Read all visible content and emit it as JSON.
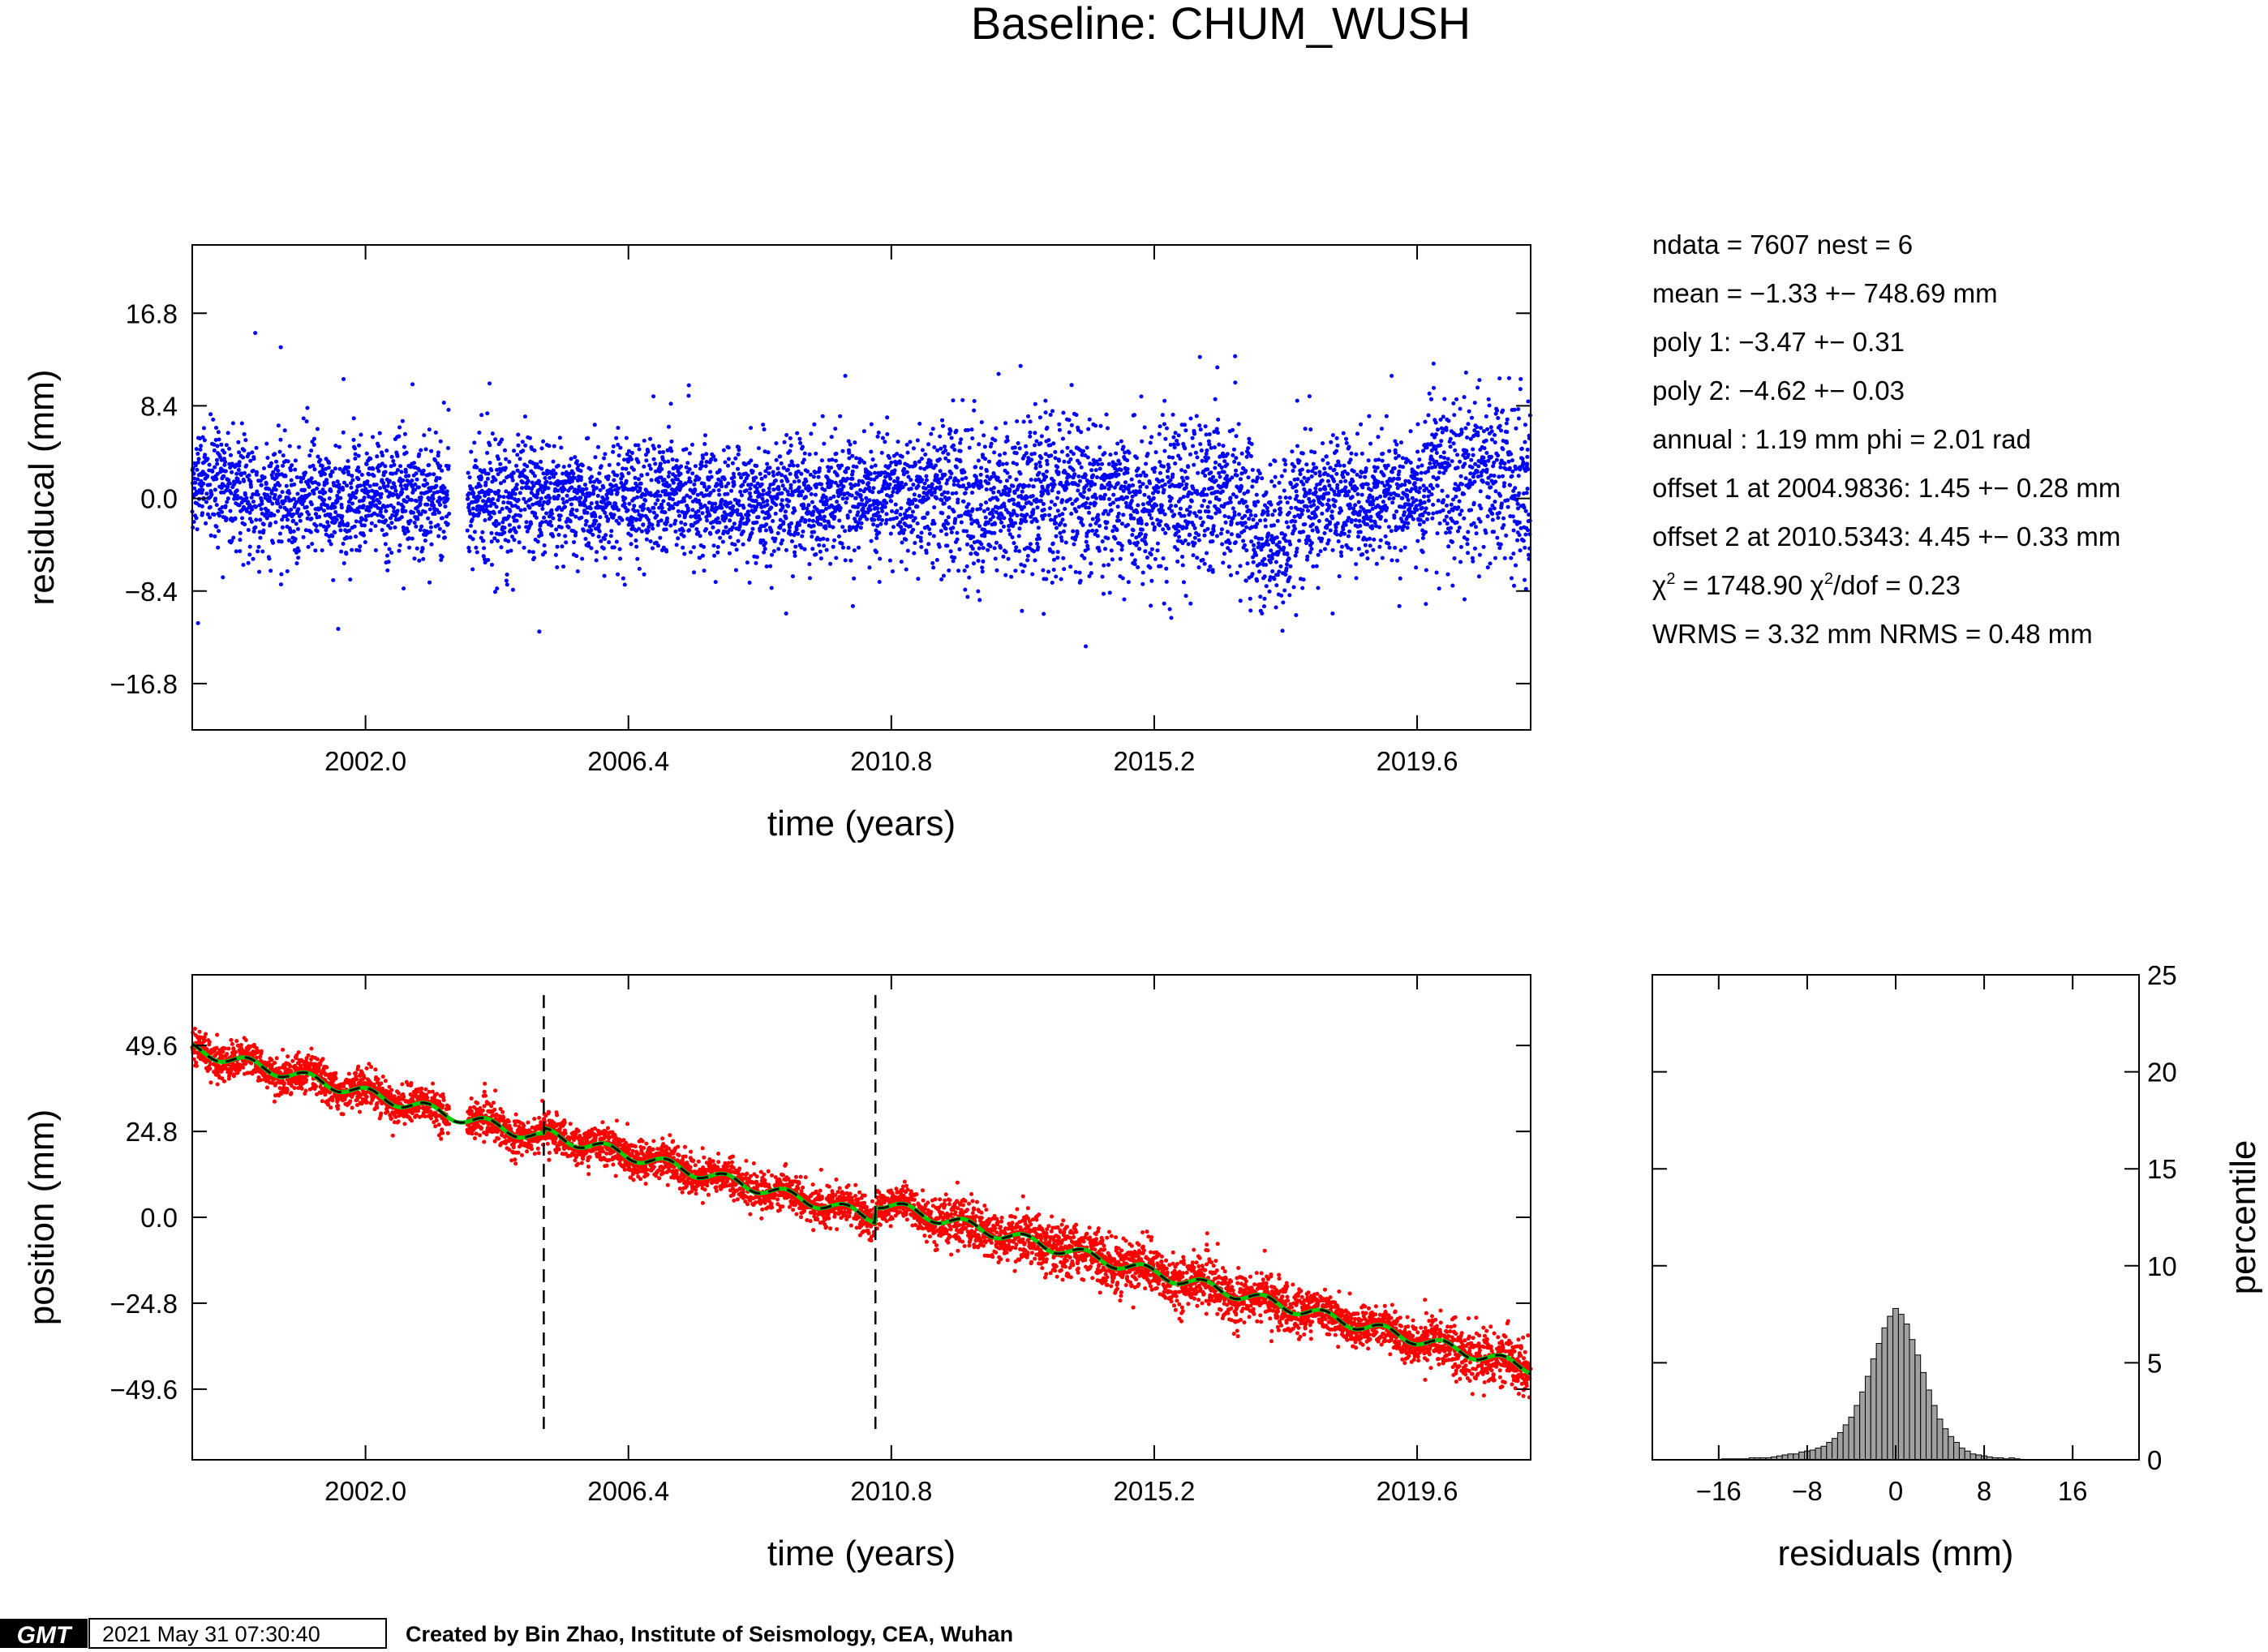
{
  "title": "Baseline: CHUM_WUSH",
  "stats": {
    "lines": [
      "ndata = 7607  nest = 6",
      "mean = −1.33 +− 748.69 mm",
      "poly 1: −3.47 +− 0.31",
      "poly 2: −4.62 +− 0.03",
      "annual : 1.19 mm  phi = 2.01 rad",
      "offset 1 at 2004.9836: 1.45 +− 0.28 mm",
      "offset 2 at 2010.5343: 4.45 +− 0.33 mm"
    ],
    "chi2_a": "χ",
    "chi2_b": " = 1748.90  ",
    "chi2_c": "χ",
    "chi2_d": "/dof = 0.23",
    "sup": "2",
    "wrms": "WRMS = 3.32 mm  NRMS = 0.48 mm"
  },
  "footer": {
    "logo": "GMT",
    "timestamp": "2021 May 31 07:30:40",
    "credit": "Created by Bin Zhao, Institute of Seismology, CEA, Wuhan"
  },
  "chart_data": [
    {
      "type": "scatter",
      "name": "residual",
      "xlabel": "time (years)",
      "ylabel": "residucal (mm)",
      "xlim": [
        1999.1,
        2021.5
      ],
      "ylim": [
        -21.0,
        23.0
      ],
      "xticks": [
        "2002.0",
        "2006.4",
        "2010.8",
        "2015.2",
        "2019.6"
      ],
      "xtick_values": [
        2002.0,
        2006.4,
        2010.8,
        2015.2,
        2019.6
      ],
      "yticks": [
        "16.8",
        "8.4",
        "0.0",
        "−8.4",
        "−16.8"
      ],
      "ytick_values": [
        16.8,
        8.4,
        0.0,
        -8.4,
        -16.8
      ],
      "color": "#0000ff",
      "points_description_count": 7607
    },
    {
      "type": "scatter",
      "name": "position",
      "xlabel": "time (years)",
      "ylabel": "position (mm)",
      "xlim": [
        1999.1,
        2021.5
      ],
      "ylim": [
        -70.0,
        70.0
      ],
      "xticks": [
        "2002.0",
        "2006.4",
        "2010.8",
        "2015.2",
        "2019.6"
      ],
      "xtick_values": [
        2002.0,
        2006.4,
        2010.8,
        2015.2,
        2019.6
      ],
      "yticks": [
        "49.6",
        "24.8",
        "0.0",
        "−24.8",
        "−49.6"
      ],
      "ytick_values": [
        49.6,
        24.8,
        0.0,
        -24.8,
        -49.6
      ],
      "color": "#ff0000",
      "model_color": "#00cc00",
      "offsets_years": [
        2004.9836,
        2010.5343
      ],
      "trend": {
        "start": [
          1999.1,
          48.5
        ],
        "end": [
          2021.5,
          -49.5
        ]
      }
    },
    {
      "type": "bar",
      "name": "histogram",
      "xlabel": "residuals (mm)",
      "ylabel": "percentile",
      "xlim": [
        -22,
        22
      ],
      "ylim": [
        0,
        25
      ],
      "xticks": [
        "−16",
        "−8",
        "0",
        "8",
        "16"
      ],
      "xtick_values": [
        -16,
        -8,
        0,
        8,
        16
      ],
      "yticks": [
        "0",
        "5",
        "10",
        "15",
        "20",
        "25"
      ],
      "ytick_values": [
        0,
        5,
        10,
        15,
        20,
        25
      ],
      "bin_width": 0.5,
      "color": "#a0a0a0",
      "bins_x": [
        -15.5,
        -15,
        -14.5,
        -14,
        -13.5,
        -13,
        -12.5,
        -12,
        -11.5,
        -11,
        -10.5,
        -10,
        -9.5,
        -9,
        -8.5,
        -8,
        -7.5,
        -7,
        -6.5,
        -6,
        -5.5,
        -5,
        -4.5,
        -4,
        -3.5,
        -3,
        -2.5,
        -2,
        -1.5,
        -1,
        -0.5,
        0,
        0.5,
        1,
        1.5,
        2,
        2.5,
        3,
        3.5,
        4,
        4.5,
        5,
        5.5,
        6,
        6.5,
        7,
        7.5,
        8,
        8.5,
        9,
        9.5,
        10,
        10.5,
        11
      ],
      "values": [
        0.05,
        0.05,
        0.05,
        0.05,
        0.05,
        0.1,
        0.1,
        0.1,
        0.1,
        0.15,
        0.2,
        0.25,
        0.3,
        0.3,
        0.4,
        0.45,
        0.5,
        0.6,
        0.7,
        0.9,
        1.1,
        1.4,
        1.8,
        2.2,
        2.8,
        3.5,
        4.3,
        5.2,
        6.0,
        6.8,
        7.4,
        7.8,
        7.5,
        7.0,
        6.2,
        5.4,
        4.5,
        3.6,
        2.8,
        2.1,
        1.6,
        1.2,
        0.9,
        0.6,
        0.45,
        0.3,
        0.25,
        0.2,
        0.15,
        0.1,
        0.1,
        0.05,
        0.1,
        0.05
      ]
    }
  ]
}
